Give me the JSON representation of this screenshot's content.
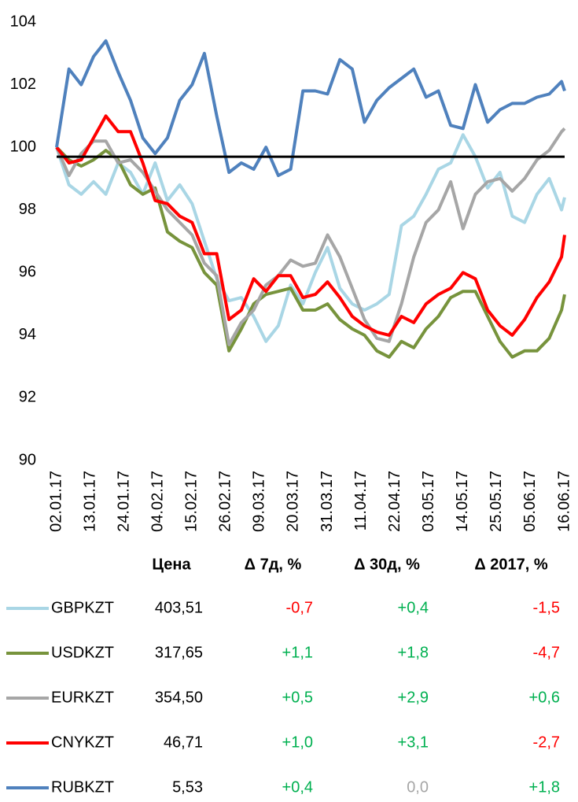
{
  "chart_data": {
    "type": "line",
    "x": [
      "02.01.17",
      "06.01.17",
      "10.01.17",
      "14.01.17",
      "18.01.17",
      "22.01.17",
      "26.01.17",
      "30.01.17",
      "03.02.17",
      "07.02.17",
      "11.02.17",
      "15.02.17",
      "19.02.17",
      "23.02.17",
      "27.02.17",
      "03.03.17",
      "07.03.17",
      "11.03.17",
      "15.03.17",
      "19.03.17",
      "23.03.17",
      "27.03.17",
      "31.03.17",
      "04.04.17",
      "08.04.17",
      "12.04.17",
      "16.04.17",
      "20.04.17",
      "24.04.17",
      "28.04.17",
      "02.05.17",
      "06.05.17",
      "10.05.17",
      "14.05.17",
      "18.05.17",
      "22.05.17",
      "26.05.17",
      "30.05.17",
      "03.06.17",
      "07.06.17",
      "11.06.17",
      "15.06.17",
      "16.06.17"
    ],
    "series": [
      {
        "name": "GBPKZT",
        "color": "#a9d6e5",
        "values": [
          100,
          98.8,
          98.5,
          98.9,
          98.5,
          99.5,
          99.2,
          98.5,
          99.5,
          98.3,
          98.8,
          98.2,
          97,
          95.8,
          95.1,
          95.2,
          94.6,
          93.8,
          94.3,
          95.6,
          95,
          96,
          96.8,
          95.5,
          95,
          94.8,
          95,
          95.3,
          97.5,
          97.8,
          98.5,
          99.3,
          99.5,
          100.4,
          99.7,
          98.7,
          99.2,
          97.8,
          97.6,
          98.5,
          99,
          98,
          98.4
        ]
      },
      {
        "name": "USDKZT",
        "color": "#77933c",
        "values": [
          100,
          99.6,
          99.4,
          99.6,
          99.9,
          99.6,
          98.8,
          98.5,
          98.7,
          97.3,
          97,
          96.8,
          96,
          95.6,
          93.5,
          94.2,
          95,
          95.3,
          95.4,
          95.5,
          94.8,
          94.8,
          95,
          94.5,
          94.2,
          94,
          93.5,
          93.3,
          93.8,
          93.6,
          94.2,
          94.6,
          95.2,
          95.4,
          95.4,
          94.6,
          93.8,
          93.3,
          93.5,
          93.5,
          93.9,
          94.8,
          95.3
        ]
      },
      {
        "name": "EURKZT",
        "color": "#a6a6a6",
        "values": [
          100,
          99.1,
          99.8,
          100.2,
          100.2,
          99.5,
          99.6,
          99.2,
          98.6,
          98,
          97.6,
          97.2,
          96.3,
          95.9,
          93.7,
          94.4,
          94.8,
          95.6,
          95.9,
          96.4,
          96.2,
          96.3,
          97.2,
          96.5,
          95.5,
          94.5,
          93.9,
          93.8,
          95,
          96.5,
          97.6,
          98,
          98.9,
          97.4,
          98.5,
          98.9,
          99,
          98.6,
          99,
          99.6,
          99.9,
          100.5,
          100.6
        ]
      },
      {
        "name": "CNYKZT",
        "color": "#ff0000",
        "values": [
          100,
          99.5,
          99.6,
          100.3,
          101,
          100.5,
          100.5,
          99.5,
          98.3,
          98.2,
          97.8,
          97.6,
          96.6,
          96.6,
          94.5,
          94.8,
          95.8,
          95.4,
          95.9,
          95.9,
          95.2,
          95.3,
          95.7,
          95.2,
          94.6,
          94.3,
          94.1,
          94,
          94.6,
          94.4,
          95,
          95.3,
          95.5,
          96,
          95.8,
          94.8,
          94.3,
          94,
          94.5,
          95.2,
          95.7,
          96.5,
          97.2
        ]
      },
      {
        "name": "RUBKZT",
        "color": "#4f81bd",
        "values": [
          100,
          102.5,
          102,
          102.9,
          103.4,
          102.4,
          101.5,
          100.3,
          99.8,
          100.3,
          101.5,
          102,
          103,
          101,
          99.2,
          99.5,
          99.3,
          100,
          99.1,
          99.3,
          101.8,
          101.8,
          101.7,
          102.8,
          102.5,
          100.8,
          101.5,
          101.9,
          102.2,
          102.5,
          101.6,
          101.8,
          100.7,
          100.6,
          102,
          100.8,
          101.2,
          101.4,
          101.4,
          101.6,
          101.7,
          102.1,
          101.8
        ]
      }
    ],
    "xlim": [
      "02.01.17",
      "16.06.17"
    ],
    "xticks": [
      "02.01.17",
      "13.01.17",
      "24.01.17",
      "04.02.17",
      "15.02.17",
      "26.02.17",
      "09.03.17",
      "20.03.17",
      "31.03.17",
      "11.04.17",
      "22.04.17",
      "03.05.17",
      "14.05.17",
      "25.05.17",
      "05.06.17",
      "16.06.17"
    ],
    "ylim": [
      90,
      104
    ],
    "yticks": [
      90,
      92,
      94,
      96,
      98,
      100,
      102,
      104
    ],
    "hline": 99.7,
    "hline_color": "#000000",
    "grid": false,
    "table": {
      "columns": [
        "Цена",
        "Δ 7д, %",
        "Δ 30д, %",
        "Δ 2017, %"
      ],
      "rows": [
        [
          "403,51",
          "-0,7",
          "+0,4",
          "-1,5"
        ],
        [
          "317,65",
          "+1,1",
          "+1,8",
          "-4,7"
        ],
        [
          "354,50",
          "+0,5",
          "+2,9",
          "+0,6"
        ],
        [
          "46,71",
          "+1,0",
          "+3,1",
          "-2,7"
        ],
        [
          "5,53",
          "+0,4",
          "0,0",
          "+1,8"
        ]
      ],
      "colors": {
        "positive": "#00b050",
        "negative": "#ff0000",
        "zero": "#a6a6a6",
        "price": "#000000"
      }
    }
  }
}
